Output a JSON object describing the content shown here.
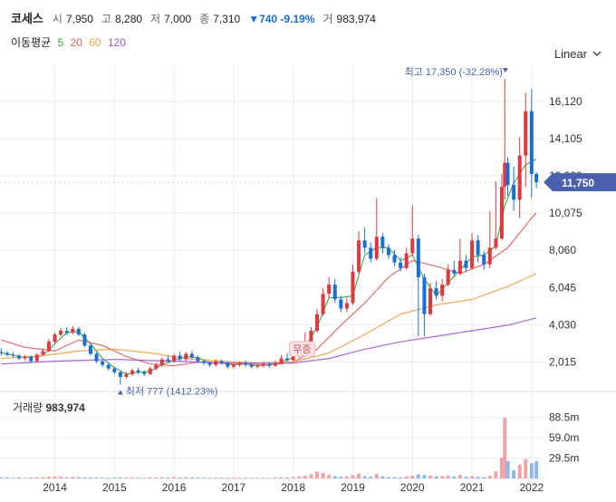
{
  "quote": {
    "name": "코세스",
    "open_label": "시",
    "open": "7,950",
    "high_label": "고",
    "high": "8,280",
    "low_label": "저",
    "low": "7,000",
    "close_label": "종",
    "close": "7,310",
    "change": "▼740 -9.19%",
    "volume_label": "거",
    "volume": "983,974"
  },
  "ma_legend": {
    "label": "이동평균",
    "periods": [
      {
        "period": "5",
        "color": "#3aa33a"
      },
      {
        "period": "20",
        "color": "#e85a5a"
      },
      {
        "period": "60",
        "color": "#f2a041"
      },
      {
        "period": "120",
        "color": "#9b59d0"
      }
    ]
  },
  "scale_toggle": {
    "label": "Linear"
  },
  "colors": {
    "up": "#e0383e",
    "down": "#1a6fd6",
    "grid": "#ececec"
  },
  "chart_data": {
    "type": "candlestick",
    "x_tick_labels": [
      "2014",
      "2015",
      "2016",
      "2017",
      "2018",
      "2019",
      "2020",
      "2021",
      "2022"
    ],
    "x_range": [
      2013.08,
      2022.2
    ],
    "y_tick_labels": [
      "16,120",
      "14,105",
      "12,090",
      "10,075",
      "8,060",
      "6,045",
      "4,030",
      "2,015"
    ],
    "y_ticks": [
      16120,
      14105,
      12090,
      10075,
      8060,
      6045,
      4030,
      2015
    ],
    "ylim": [
      1000,
      17600
    ],
    "current_price": {
      "value": 11750,
      "label": "11,750"
    },
    "annotations": {
      "high": {
        "text": "최고 17,350 (-32.28%)",
        "value": 17350,
        "date": 2021.56
      },
      "low": {
        "text": "최저 777 (1412.23%)",
        "value": 777,
        "date": 2015.1
      },
      "event": {
        "text": "무증",
        "date": 2018.15
      }
    },
    "volume": {
      "title": "거래량",
      "last": "983,974",
      "y_tick_labels": [
        "88.5m",
        "59.0m",
        "29.5m"
      ],
      "y_ticks": [
        88.5,
        59.0,
        29.5
      ],
      "ylim": [
        0,
        105
      ]
    },
    "candles": [
      [
        2013.1,
        2550,
        2500,
        2750,
        2350
      ],
      [
        2013.2,
        2500,
        2400,
        2600,
        2300
      ],
      [
        2013.3,
        2400,
        2350,
        2550,
        2250
      ],
      [
        2013.4,
        2350,
        2200,
        2450,
        2100
      ],
      [
        2013.5,
        2200,
        2300,
        2400,
        2100
      ],
      [
        2013.6,
        2300,
        2050,
        2350,
        1950
      ],
      [
        2013.7,
        2050,
        2400,
        2500,
        2000
      ],
      [
        2013.8,
        2400,
        2600,
        2750,
        2350
      ],
      [
        2013.9,
        2600,
        3100,
        3250,
        2550
      ],
      [
        2014.0,
        3100,
        3500,
        3600,
        3000
      ],
      [
        2014.1,
        3500,
        3700,
        3850,
        3400
      ],
      [
        2014.2,
        3700,
        3600,
        3900,
        3450
      ],
      [
        2014.3,
        3600,
        3800,
        3950,
        3500
      ],
      [
        2014.4,
        3800,
        3500,
        3900,
        3400
      ],
      [
        2014.5,
        3500,
        2900,
        3600,
        2800
      ],
      [
        2014.6,
        2900,
        2450,
        3000,
        2350
      ],
      [
        2014.7,
        2450,
        2050,
        2550,
        1950
      ],
      [
        2014.8,
        2050,
        1850,
        2150,
        1750
      ],
      [
        2014.9,
        1850,
        1650,
        1950,
        1550
      ],
      [
        2015.0,
        1650,
        1450,
        1750,
        1350
      ],
      [
        2015.1,
        1450,
        1200,
        1550,
        777
      ],
      [
        2015.2,
        1200,
        1350,
        1450,
        1100
      ],
      [
        2015.3,
        1350,
        1550,
        1650,
        1250
      ],
      [
        2015.4,
        1550,
        1450,
        1700,
        1350
      ],
      [
        2015.5,
        1450,
        1350,
        1550,
        1250
      ],
      [
        2015.6,
        1350,
        1650,
        1750,
        1300
      ],
      [
        2015.7,
        1650,
        1850,
        1950,
        1550
      ],
      [
        2015.8,
        1850,
        2150,
        2250,
        1750
      ],
      [
        2015.9,
        2150,
        2050,
        2350,
        1950
      ],
      [
        2016.0,
        2050,
        2350,
        2450,
        1950
      ],
      [
        2016.1,
        2350,
        2150,
        2550,
        2050
      ],
      [
        2016.2,
        2150,
        2450,
        2550,
        2050
      ],
      [
        2016.3,
        2450,
        2250,
        2600,
        2150
      ],
      [
        2016.4,
        2250,
        2050,
        2350,
        1950
      ],
      [
        2016.5,
        2050,
        1950,
        2150,
        1850
      ],
      [
        2016.6,
        1950,
        1850,
        2050,
        1750
      ],
      [
        2016.7,
        1850,
        2050,
        2150,
        1750
      ],
      [
        2016.8,
        2050,
        1950,
        2150,
        1850
      ],
      [
        2016.9,
        1950,
        1750,
        2050,
        1650
      ],
      [
        2017.0,
        1750,
        1850,
        1950,
        1650
      ],
      [
        2017.1,
        1850,
        1950,
        2050,
        1750
      ],
      [
        2017.2,
        1950,
        1850,
        2100,
        1750
      ],
      [
        2017.3,
        1850,
        1750,
        1950,
        1650
      ],
      [
        2017.4,
        1750,
        1800,
        1900,
        1650
      ],
      [
        2017.5,
        1800,
        1900,
        2000,
        1700
      ],
      [
        2017.6,
        1900,
        1800,
        2000,
        1700
      ],
      [
        2017.7,
        1800,
        1900,
        2100,
        1750
      ],
      [
        2017.8,
        1900,
        2200,
        2400,
        1850
      ],
      [
        2017.9,
        2200,
        2100,
        2500,
        2000
      ],
      [
        2018.0,
        2100,
        2300,
        2600,
        2050
      ],
      [
        2018.1,
        2300,
        2600,
        2850,
        2250
      ],
      [
        2018.2,
        2600,
        3100,
        3600,
        2550
      ],
      [
        2018.3,
        3100,
        3700,
        3900,
        3000
      ],
      [
        2018.4,
        3700,
        4600,
        4900,
        3600
      ],
      [
        2018.5,
        4600,
        5700,
        6000,
        4500
      ],
      [
        2018.6,
        5700,
        6200,
        6600,
        5500
      ],
      [
        2018.7,
        6200,
        5400,
        6500,
        5200
      ],
      [
        2018.8,
        5400,
        4900,
        5600,
        4700
      ],
      [
        2018.9,
        4900,
        5200,
        5500,
        4700
      ],
      [
        2019.0,
        5200,
        6900,
        7300,
        5100
      ],
      [
        2019.1,
        6900,
        8600,
        9100,
        6800
      ],
      [
        2019.2,
        8600,
        8200,
        9300,
        7900
      ],
      [
        2019.3,
        8200,
        7600,
        8500,
        7400
      ],
      [
        2019.4,
        7600,
        8800,
        10900,
        7500
      ],
      [
        2019.5,
        8800,
        8200,
        9000,
        7900
      ],
      [
        2019.6,
        8200,
        7800,
        8400,
        7600
      ],
      [
        2019.7,
        7800,
        7400,
        8100,
        7200
      ],
      [
        2019.8,
        7400,
        7100,
        7700,
        6900
      ],
      [
        2019.9,
        7100,
        7900,
        8200,
        7000
      ],
      [
        2020.0,
        7900,
        8700,
        10500,
        7800
      ],
      [
        2020.1,
        8700,
        6600,
        8900,
        3400
      ],
      [
        2020.2,
        6600,
        4600,
        6800,
        3400
      ],
      [
        2020.3,
        4600,
        6000,
        6300,
        4500
      ],
      [
        2020.4,
        6000,
        5600,
        6400,
        5400
      ],
      [
        2020.5,
        5600,
        6200,
        6500,
        5300
      ],
      [
        2020.6,
        6200,
        7000,
        7300,
        6100
      ],
      [
        2020.7,
        7000,
        6800,
        7500,
        6600
      ],
      [
        2020.8,
        6800,
        7500,
        8700,
        6700
      ],
      [
        2020.9,
        7500,
        7100,
        7800,
        6900
      ],
      [
        2021.0,
        7100,
        8600,
        9000,
        7000
      ],
      [
        2021.1,
        8600,
        7800,
        8900,
        7400
      ],
      [
        2021.2,
        7800,
        7300,
        8000,
        7000
      ],
      [
        2021.3,
        7300,
        8200,
        10200,
        7100
      ],
      [
        2021.4,
        8200,
        8700,
        11800,
        8100
      ],
      [
        2021.5,
        8700,
        11500,
        12200,
        8600
      ],
      [
        2021.55,
        11500,
        12800,
        17350,
        10800
      ],
      [
        2021.6,
        12800,
        11600,
        13100,
        11000
      ],
      [
        2021.7,
        11600,
        10800,
        12600,
        10200
      ],
      [
        2021.8,
        10800,
        13200,
        14200,
        9800
      ],
      [
        2021.9,
        13200,
        15600,
        16600,
        11500
      ],
      [
        2022.0,
        15600,
        12200,
        16800,
        10900
      ],
      [
        2022.08,
        12200,
        11750,
        12300,
        11400
      ]
    ],
    "volumes": [
      [
        2013.1,
        1.5
      ],
      [
        2013.2,
        1.2
      ],
      [
        2013.3,
        1.0
      ],
      [
        2013.4,
        1.3
      ],
      [
        2013.5,
        0.9
      ],
      [
        2013.6,
        1.1
      ],
      [
        2013.7,
        1.6
      ],
      [
        2013.8,
        2.0
      ],
      [
        2013.9,
        2.5
      ],
      [
        2014.0,
        3.0
      ],
      [
        2014.1,
        2.4
      ],
      [
        2014.2,
        1.8
      ],
      [
        2014.3,
        2.2
      ],
      [
        2014.4,
        1.9
      ],
      [
        2014.5,
        1.6
      ],
      [
        2014.6,
        1.4
      ],
      [
        2014.7,
        1.2
      ],
      [
        2014.8,
        1.1
      ],
      [
        2014.9,
        1.0
      ],
      [
        2015.0,
        1.2
      ],
      [
        2015.1,
        1.5
      ],
      [
        2015.2,
        1.3
      ],
      [
        2015.3,
        1.4
      ],
      [
        2015.4,
        1.1
      ],
      [
        2015.5,
        1.0
      ],
      [
        2015.6,
        1.3
      ],
      [
        2015.7,
        1.5
      ],
      [
        2015.8,
        1.8
      ],
      [
        2015.9,
        1.4
      ],
      [
        2016.0,
        2.0
      ],
      [
        2016.1,
        1.6
      ],
      [
        2016.2,
        1.9
      ],
      [
        2016.3,
        1.5
      ],
      [
        2016.4,
        1.2
      ],
      [
        2016.5,
        1.0
      ],
      [
        2016.6,
        0.9
      ],
      [
        2016.7,
        1.1
      ],
      [
        2016.8,
        1.0
      ],
      [
        2016.9,
        0.9
      ],
      [
        2017.0,
        1.0
      ],
      [
        2017.1,
        1.1
      ],
      [
        2017.2,
        1.0
      ],
      [
        2017.3,
        0.9
      ],
      [
        2017.4,
        0.8
      ],
      [
        2017.5,
        1.0
      ],
      [
        2017.6,
        0.9
      ],
      [
        2017.7,
        1.2
      ],
      [
        2017.8,
        1.8
      ],
      [
        2017.9,
        1.5
      ],
      [
        2018.0,
        2.2
      ],
      [
        2018.1,
        3.0
      ],
      [
        2018.2,
        4.0
      ],
      [
        2018.3,
        6.0
      ],
      [
        2018.4,
        10.0
      ],
      [
        2018.5,
        8.0
      ],
      [
        2018.6,
        5.0
      ],
      [
        2018.7,
        3.5
      ],
      [
        2018.8,
        2.5
      ],
      [
        2018.9,
        3.0
      ],
      [
        2019.0,
        5.0
      ],
      [
        2019.1,
        7.0
      ],
      [
        2019.2,
        3.5
      ],
      [
        2019.3,
        2.5
      ],
      [
        2019.4,
        6.5
      ],
      [
        2019.5,
        3.0
      ],
      [
        2019.6,
        2.0
      ],
      [
        2019.7,
        1.8
      ],
      [
        2019.8,
        1.5
      ],
      [
        2019.9,
        3.0
      ],
      [
        2020.0,
        4.0
      ],
      [
        2020.1,
        6.0
      ],
      [
        2020.2,
        5.0
      ],
      [
        2020.3,
        4.0
      ],
      [
        2020.4,
        3.0
      ],
      [
        2020.5,
        3.5
      ],
      [
        2020.6,
        4.0
      ],
      [
        2020.7,
        3.0
      ],
      [
        2020.8,
        5.0
      ],
      [
        2020.9,
        2.5
      ],
      [
        2021.0,
        3.5
      ],
      [
        2021.1,
        2.5
      ],
      [
        2021.2,
        2.0
      ],
      [
        2021.3,
        4.0
      ],
      [
        2021.4,
        10.0
      ],
      [
        2021.5,
        30.0
      ],
      [
        2021.55,
        88.0
      ],
      [
        2021.6,
        25.0
      ],
      [
        2021.7,
        12.0
      ],
      [
        2021.8,
        20.0
      ],
      [
        2021.9,
        28.0
      ],
      [
        2022.0,
        22.0
      ],
      [
        2022.08,
        25.0
      ]
    ],
    "ma_series": {
      "5": [
        [
          2013.1,
          2500
        ],
        [
          2013.5,
          2250
        ],
        [
          2013.8,
          2350
        ],
        [
          2014.0,
          3000
        ],
        [
          2014.2,
          3600
        ],
        [
          2014.4,
          3650
        ],
        [
          2014.6,
          3000
        ],
        [
          2014.8,
          2200
        ],
        [
          2015.0,
          1700
        ],
        [
          2015.2,
          1350
        ],
        [
          2015.4,
          1450
        ],
        [
          2015.6,
          1500
        ],
        [
          2015.8,
          1850
        ],
        [
          2016.0,
          2100
        ],
        [
          2016.2,
          2300
        ],
        [
          2016.4,
          2250
        ],
        [
          2016.6,
          1950
        ],
        [
          2016.8,
          1950
        ],
        [
          2017.0,
          1850
        ],
        [
          2017.2,
          1900
        ],
        [
          2017.4,
          1800
        ],
        [
          2017.6,
          1850
        ],
        [
          2017.8,
          2000
        ],
        [
          2018.0,
          2250
        ],
        [
          2018.2,
          2800
        ],
        [
          2018.4,
          3900
        ],
        [
          2018.6,
          5500
        ],
        [
          2018.8,
          5500
        ],
        [
          2019.0,
          5600
        ],
        [
          2019.2,
          7800
        ],
        [
          2019.4,
          8200
        ],
        [
          2019.6,
          8200
        ],
        [
          2019.8,
          7500
        ],
        [
          2020.0,
          7800
        ],
        [
          2020.2,
          6500
        ],
        [
          2020.4,
          5600
        ],
        [
          2020.6,
          6300
        ],
        [
          2020.8,
          7000
        ],
        [
          2021.0,
          7700
        ],
        [
          2021.2,
          7800
        ],
        [
          2021.4,
          8300
        ],
        [
          2021.55,
          10500
        ],
        [
          2021.7,
          11700
        ],
        [
          2021.9,
          12700
        ],
        [
          2022.08,
          13000
        ]
      ],
      "20": [
        [
          2013.1,
          3200
        ],
        [
          2013.5,
          2800
        ],
        [
          2014.0,
          2600
        ],
        [
          2014.4,
          3200
        ],
        [
          2014.8,
          2900
        ],
        [
          2015.2,
          2300
        ],
        [
          2015.6,
          1900
        ],
        [
          2016.0,
          1800
        ],
        [
          2016.4,
          2000
        ],
        [
          2016.8,
          1950
        ],
        [
          2017.2,
          1900
        ],
        [
          2017.6,
          1850
        ],
        [
          2018.0,
          2000
        ],
        [
          2018.4,
          2700
        ],
        [
          2018.8,
          4000
        ],
        [
          2019.2,
          5200
        ],
        [
          2019.6,
          6600
        ],
        [
          2020.0,
          7500
        ],
        [
          2020.4,
          7200
        ],
        [
          2020.8,
          6800
        ],
        [
          2021.2,
          7300
        ],
        [
          2021.6,
          8200
        ],
        [
          2022.0,
          9800
        ],
        [
          2022.08,
          10100
        ]
      ],
      "60": [
        [
          2013.1,
          2200
        ],
        [
          2013.8,
          2350
        ],
        [
          2014.4,
          2600
        ],
        [
          2015.0,
          2700
        ],
        [
          2015.6,
          2500
        ],
        [
          2016.2,
          2200
        ],
        [
          2016.8,
          2050
        ],
        [
          2017.4,
          1950
        ],
        [
          2018.0,
          2000
        ],
        [
          2018.6,
          2500
        ],
        [
          2019.2,
          3500
        ],
        [
          2019.8,
          4600
        ],
        [
          2020.4,
          5100
        ],
        [
          2021.0,
          5400
        ],
        [
          2021.6,
          6100
        ],
        [
          2022.08,
          6800
        ]
      ],
      "120": [
        [
          2013.1,
          1900
        ],
        [
          2014.0,
          2050
        ],
        [
          2015.0,
          2150
        ],
        [
          2016.0,
          2050
        ],
        [
          2017.0,
          1950
        ],
        [
          2018.0,
          1950
        ],
        [
          2018.6,
          2200
        ],
        [
          2019.2,
          2700
        ],
        [
          2019.8,
          3100
        ],
        [
          2020.4,
          3400
        ],
        [
          2021.0,
          3700
        ],
        [
          2021.6,
          4000
        ],
        [
          2022.08,
          4400
        ]
      ]
    }
  }
}
